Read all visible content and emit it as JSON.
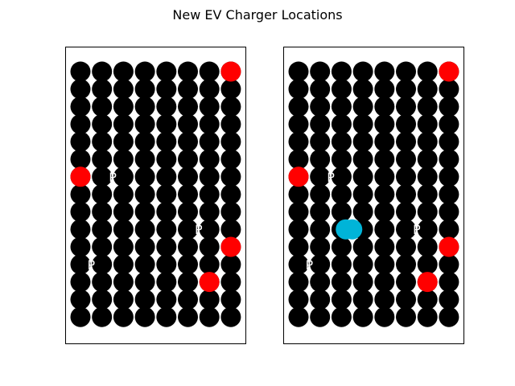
{
  "title": "New EV Charger Locations",
  "colors": {
    "grid_marker": "#000000",
    "dot": "#ffffff",
    "existing_charger": "#ff0000",
    "new_charger": "#00b4d8",
    "parking_label": "#ffffff"
  },
  "chart_data": [
    {
      "type": "scatter",
      "title": "",
      "grid_columns": 8,
      "grid_rows": 15,
      "series": [
        {
          "marker": "black-grid-circles",
          "points": "all grid cells"
        },
        {
          "marker": "red-circle",
          "points": [
            [
              7,
              0
            ],
            [
              0,
              6
            ],
            [
              7,
              10
            ],
            [
              6,
              12
            ]
          ]
        },
        {
          "marker": "text-P",
          "label": "P",
          "points": [
            [
              1.5,
              6
            ],
            [
              5.5,
              9
            ],
            [
              0.5,
              11
            ]
          ]
        }
      ]
    },
    {
      "type": "scatter",
      "title": "",
      "grid_columns": 8,
      "grid_rows": 15,
      "series": [
        {
          "marker": "black-grid-circles",
          "points": "all grid cells"
        },
        {
          "marker": "red-circle",
          "points": [
            [
              7,
              0
            ],
            [
              0,
              6
            ],
            [
              7,
              10
            ],
            [
              6,
              12
            ]
          ]
        },
        {
          "marker": "cyan-circle",
          "points": [
            [
              2.2,
              9
            ],
            [
              2.5,
              9
            ]
          ]
        },
        {
          "marker": "text-P",
          "label": "P",
          "points": [
            [
              1.5,
              6
            ],
            [
              5.5,
              9
            ],
            [
              0.5,
              11
            ]
          ]
        }
      ]
    }
  ]
}
